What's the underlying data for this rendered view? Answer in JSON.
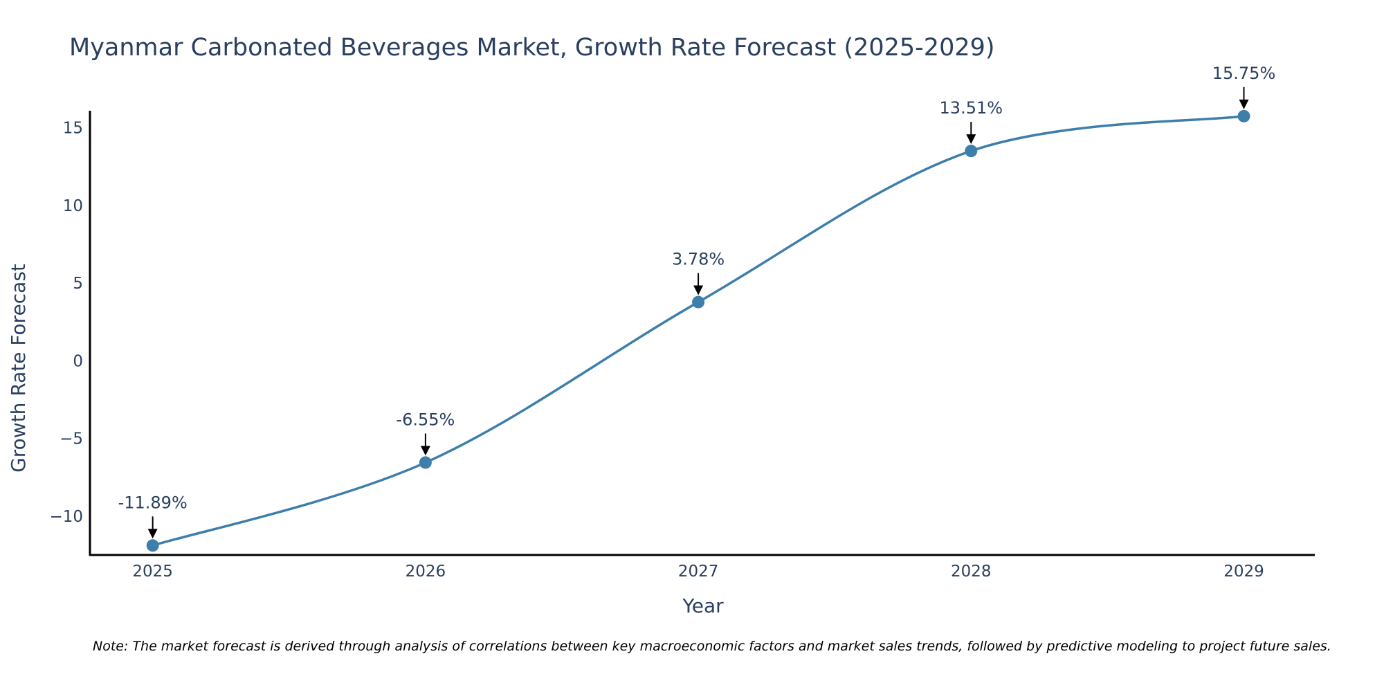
{
  "chart_data": {
    "type": "line",
    "title": "Myanmar Carbonated Beverages Market, Growth Rate Forecast (2025-2029)",
    "xlabel": "Year",
    "ylabel": "Growth Rate Forecast",
    "x": [
      "2025",
      "2026",
      "2027",
      "2028",
      "2029"
    ],
    "values": [
      -11.89,
      -6.55,
      3.78,
      13.51,
      15.75
    ],
    "annotations": [
      "-11.89%",
      "-6.55%",
      "3.78%",
      "13.51%",
      "15.75%"
    ],
    "yticks": [
      -10,
      -5,
      0,
      5,
      10,
      15
    ],
    "ytick_labels": [
      "−10",
      "−5",
      "0",
      "5",
      "10",
      "15"
    ],
    "ylim": [
      -12.5,
      16.1
    ],
    "xlim": [
      2024.77,
      2029.26
    ],
    "grid": false,
    "line_shape": "spline",
    "colors": {
      "line": "#3d7eab",
      "marker": "#3d7eab",
      "axis": "#000000",
      "text": "#2a3f5f",
      "arrow": "#000000"
    },
    "note": "Note: The market forecast is derived through analysis of correlations between key macroeconomic factors and market sales trends, followed by predictive modeling to project future sales."
  }
}
